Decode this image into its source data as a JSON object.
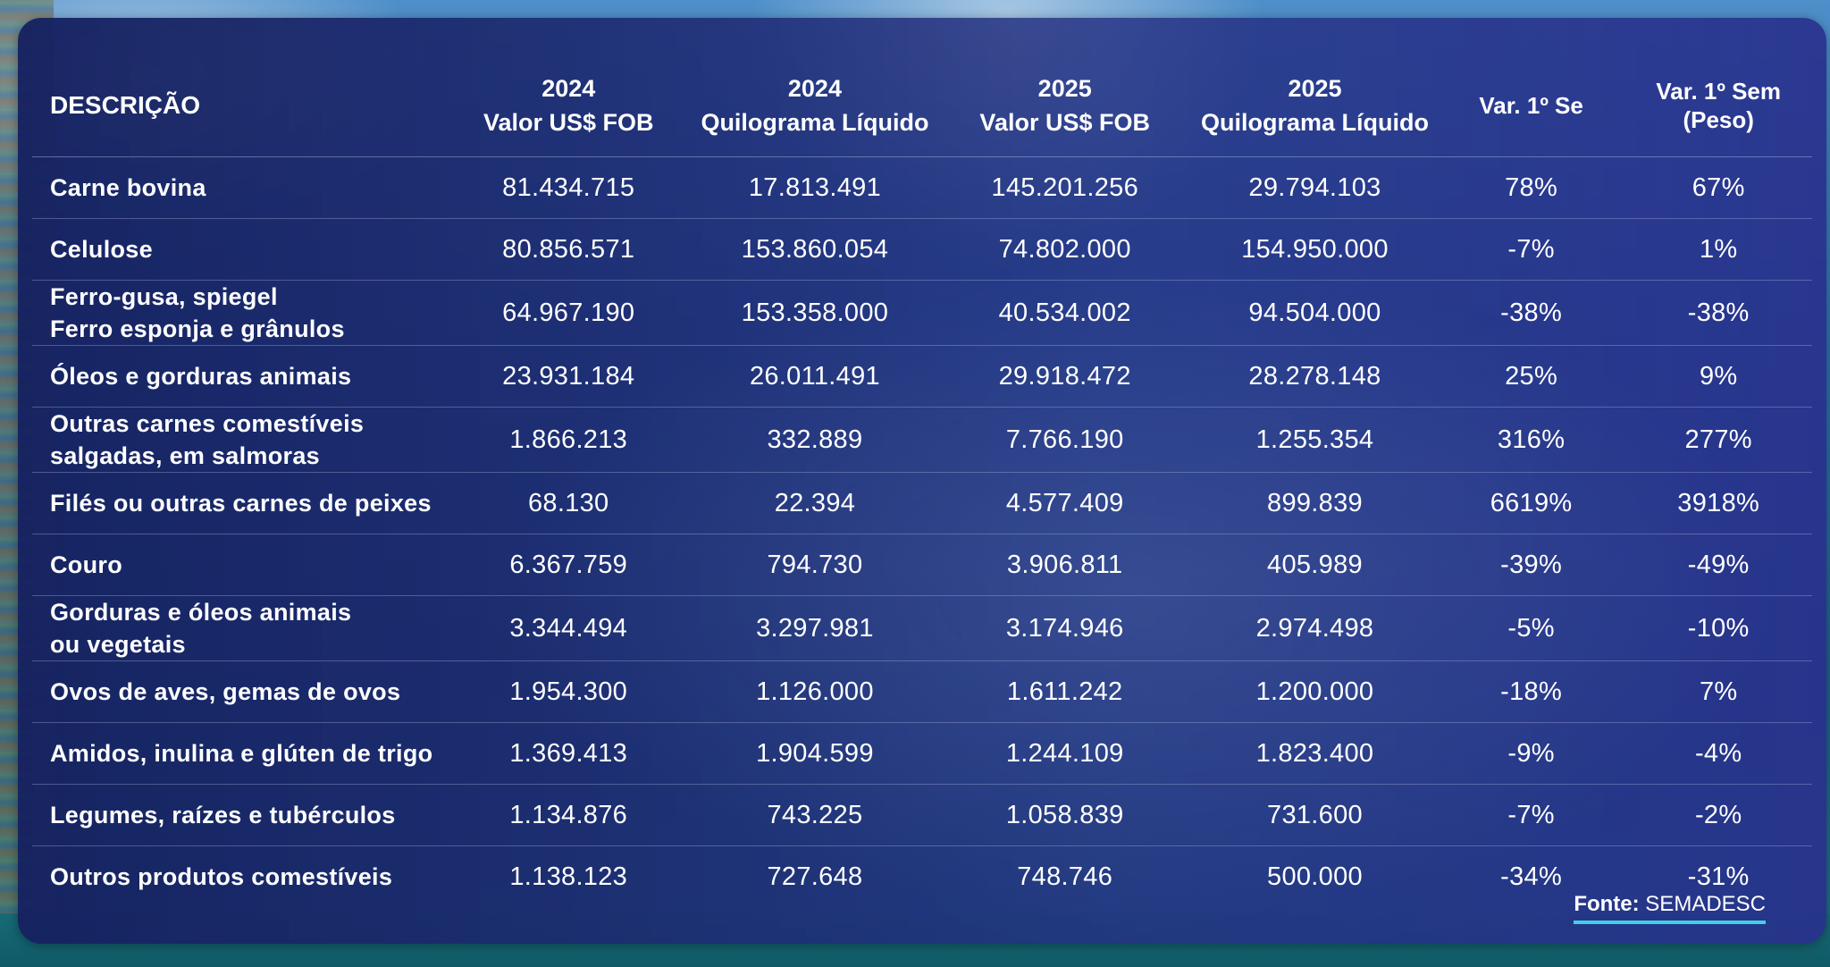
{
  "table": {
    "headers": {
      "description": "DESCRIÇÃO",
      "col1": {
        "line1": "2024",
        "line2": "Valor US$ FOB"
      },
      "col2": {
        "line1": "2024",
        "line2": "Quilograma Líquido"
      },
      "col3": {
        "line1": "2025",
        "line2": "Valor US$ FOB"
      },
      "col4": {
        "line1": "2025",
        "line2": "Quilograma Líquido"
      },
      "col5": {
        "line1": "Var. 1º Se"
      },
      "col6": {
        "line1": "Var. 1º Sem",
        "line2": "(Peso)"
      }
    },
    "rows": [
      {
        "desc": [
          "Carne bovina"
        ],
        "v2024_fob": "81.434.715",
        "v2024_kg": "17.813.491",
        "v2025_fob": "145.201.256",
        "v2025_kg": "29.794.103",
        "var_value": "78%",
        "var_weight": "67%"
      },
      {
        "desc": [
          "Celulose"
        ],
        "v2024_fob": "80.856.571",
        "v2024_kg": "153.860.054",
        "v2025_fob": "74.802.000",
        "v2025_kg": "154.950.000",
        "var_value": "-7%",
        "var_weight": "1%"
      },
      {
        "desc": [
          "Ferro-gusa, spiegel",
          "Ferro esponja e grânulos"
        ],
        "v2024_fob": "64.967.190",
        "v2024_kg": "153.358.000",
        "v2025_fob": "40.534.002",
        "v2025_kg": "94.504.000",
        "var_value": "-38%",
        "var_weight": "-38%"
      },
      {
        "desc": [
          "Óleos e gorduras animais"
        ],
        "v2024_fob": "23.931.184",
        "v2024_kg": "26.011.491",
        "v2025_fob": "29.918.472",
        "v2025_kg": "28.278.148",
        "var_value": "25%",
        "var_weight": "9%"
      },
      {
        "desc": [
          "Outras carnes comestíveis",
          "salgadas, em salmoras"
        ],
        "v2024_fob": "1.866.213",
        "v2024_kg": "332.889",
        "v2025_fob": "7.766.190",
        "v2025_kg": "1.255.354",
        "var_value": "316%",
        "var_weight": "277%"
      },
      {
        "desc": [
          "Filés ou outras carnes de peixes"
        ],
        "v2024_fob": "68.130",
        "v2024_kg": "22.394",
        "v2025_fob": "4.577.409",
        "v2025_kg": "899.839",
        "var_value": "6619%",
        "var_weight": "3918%"
      },
      {
        "desc": [
          "Couro"
        ],
        "v2024_fob": "6.367.759",
        "v2024_kg": "794.730",
        "v2025_fob": "3.906.811",
        "v2025_kg": "405.989",
        "var_value": "-39%",
        "var_weight": "-49%"
      },
      {
        "desc": [
          "Gorduras e óleos animais",
          "ou vegetais"
        ],
        "v2024_fob": "3.344.494",
        "v2024_kg": "3.297.981",
        "v2025_fob": "3.174.946",
        "v2025_kg": "2.974.498",
        "var_value": "-5%",
        "var_weight": "-10%"
      },
      {
        "desc": [
          "Ovos de aves, gemas de ovos"
        ],
        "v2024_fob": "1.954.300",
        "v2024_kg": "1.126.000",
        "v2025_fob": "1.611.242",
        "v2025_kg": "1.200.000",
        "var_value": "-18%",
        "var_weight": "7%"
      },
      {
        "desc": [
          "Amidos, inulina e glúten de trigo"
        ],
        "v2024_fob": "1.369.413",
        "v2024_kg": "1.904.599",
        "v2025_fob": "1.244.109",
        "v2025_kg": "1.823.400",
        "var_value": "-9%",
        "var_weight": "-4%"
      },
      {
        "desc": [
          "Legumes, raízes e tubérculos"
        ],
        "v2024_fob": "1.134.876",
        "v2024_kg": "743.225",
        "v2025_fob": "1.058.839",
        "v2025_kg": "731.600",
        "var_value": "-7%",
        "var_weight": "-2%"
      },
      {
        "desc": [
          "Outros produtos comestíveis"
        ],
        "v2024_fob": "1.138.123",
        "v2024_kg": "727.648",
        "v2025_fob": "748.746",
        "v2025_kg": "500.000",
        "var_value": "-34%",
        "var_weight": "-31%"
      }
    ]
  },
  "source": {
    "label": "Fonte:",
    "value": "SEMADESC"
  },
  "colors": {
    "panel": "#1c2a6e",
    "text": "#ffffff",
    "accent_underline": "#3fd0e8"
  }
}
